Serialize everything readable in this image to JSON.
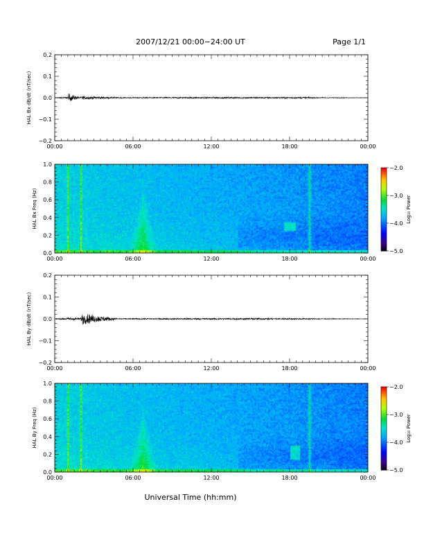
{
  "header": {
    "title": "2007/12/21  00:00−24:00 UT",
    "page": "Page 1/1"
  },
  "colors": {
    "axis": "#000000",
    "trace": "#000000"
  },
  "chart_data": [
    {
      "type": "line",
      "title": "",
      "ylabel": "HAL Bx dB/dt (nT/sec)",
      "xlabel": "",
      "xlim": [
        0,
        24
      ],
      "ylim": [
        -0.2,
        0.2
      ],
      "x_ticks": [
        "00:00",
        "06:00",
        "12:00",
        "18:00",
        "00:00"
      ],
      "y_ticks": [
        "0.2",
        "0.1",
        "0.0",
        "−0.1",
        "−0.2"
      ],
      "series": [
        {
          "description_points_x_hours": [
            0,
            1.0,
            1.1,
            2.0,
            2.1,
            5.0,
            8.0,
            10.5,
            13.0,
            15.0,
            17.0,
            19.5,
            20.0,
            24
          ],
          "envelope_nT_per_s": [
            0.002,
            0.006,
            0.025,
            0.004,
            0.012,
            0.003,
            0.004,
            0.005,
            0.005,
            0.005,
            0.005,
            0.006,
            0.003,
            0.001
          ]
        }
      ]
    },
    {
      "type": "heatmap",
      "title": "",
      "ylabel": "HAL Bx Freq (Hz)",
      "xlabel": "",
      "xlim": [
        0,
        24
      ],
      "ylim": [
        0,
        1.0
      ],
      "x_ticks": [
        "00:00",
        "06:00",
        "12:00",
        "18:00",
        "00:00"
      ],
      "y_ticks": [
        "1.0",
        "0.8",
        "0.6",
        "0.4",
        "0.2",
        "0.0"
      ],
      "colorbar": {
        "label": "Log₁₀ Power",
        "range": [
          -5.0,
          -2.0
        ],
        "ticks": [
          "−2.0",
          "−3.0",
          "−4.0",
          "−5.0"
        ]
      },
      "features": {
        "vertical_bursts_hours": [
          1.0,
          2.0,
          19.5
        ],
        "low_freq_enhancement_hours": [
          6.0,
          7.5
        ],
        "pc1_band": {
          "start_hours": 17.5,
          "end_hours": 18.5,
          "freq_hz": [
            0.25,
            0.35
          ]
        }
      }
    },
    {
      "type": "line",
      "title": "",
      "ylabel": "HAL By dB/dt (nT/sec)",
      "xlabel": "",
      "xlim": [
        0,
        24
      ],
      "ylim": [
        -0.2,
        0.2
      ],
      "x_ticks": [
        "00:00",
        "06:00",
        "12:00",
        "18:00",
        "00:00"
      ],
      "y_ticks": [
        "0.2",
        "0.1",
        "0.0",
        "−0.1",
        "−0.2"
      ],
      "series": [
        {
          "description_points_x_hours": [
            0,
            1.0,
            1.1,
            2.0,
            2.1,
            5.0,
            8.0,
            10.5,
            13.0,
            15.5,
            17.0,
            19.5,
            20.0,
            24
          ],
          "envelope_nT_per_s": [
            0.002,
            0.008,
            0.012,
            0.006,
            0.035,
            0.003,
            0.004,
            0.005,
            0.005,
            0.007,
            0.005,
            0.004,
            0.003,
            0.001
          ]
        }
      ]
    },
    {
      "type": "heatmap",
      "title": "",
      "ylabel": "HAL By Freq (Hz)",
      "xlabel": "Universal Time (hh:mm)",
      "xlim": [
        0,
        24
      ],
      "ylim": [
        0,
        1.0
      ],
      "x_ticks": [
        "00:00",
        "06:00",
        "12:00",
        "18:00",
        "00:00"
      ],
      "y_ticks": [
        "1.0",
        "0.8",
        "0.6",
        "0.4",
        "0.2",
        "0.0"
      ],
      "colorbar": {
        "label": "Log₁₀ Power",
        "range": [
          -5.0,
          -2.0
        ],
        "ticks": [
          "−2.0",
          "−3.0",
          "−4.0",
          "−5.0"
        ]
      },
      "features": {
        "vertical_bursts_hours": [
          1.0,
          2.0,
          19.5
        ],
        "low_freq_enhancement_hours": [
          6.0,
          7.5
        ],
        "pc1_band": {
          "start_hours": 18.0,
          "end_hours": 18.8,
          "freq_hz": [
            0.15,
            0.3
          ]
        }
      }
    }
  ]
}
